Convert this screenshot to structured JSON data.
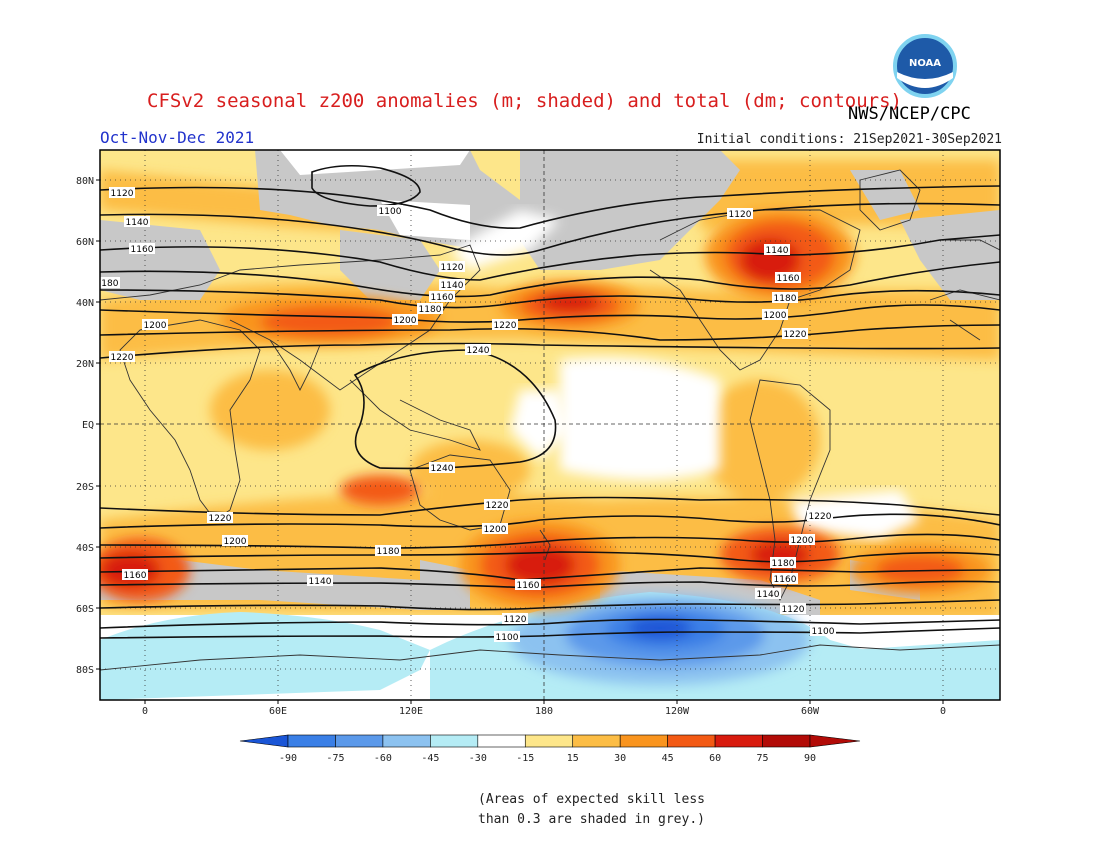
{
  "header": {
    "title": "CFSv2 seasonal z200 anomalies (m; shaded) and total (dm; contours)",
    "organization": "NWS/NCEP/CPC",
    "logo_text": "NOAA",
    "period": "Oct-Nov-Dec 2021",
    "initial_conditions": "Initial conditions: 21Sep2021-30Sep2021"
  },
  "map": {
    "lat_labels": [
      "80N",
      "60N",
      "40N",
      "20N",
      "EQ",
      "20S",
      "40S",
      "60S",
      "80S"
    ],
    "lon_labels": [
      "0",
      "60E",
      "120E",
      "180",
      "120W",
      "60W",
      "0"
    ],
    "contour_labels": [
      "1100",
      "1120",
      "1140",
      "1160",
      "1180",
      "1200",
      "1220",
      "1240"
    ]
  },
  "colorbar": {
    "labels": [
      "-90",
      "-75",
      "-60",
      "-45",
      "-30",
      "-15",
      "15",
      "30",
      "45",
      "60",
      "75",
      "90"
    ],
    "colors": [
      "#1a55d6",
      "#3a7fe6",
      "#5b99ea",
      "#8cc2f0",
      "#b5ecf5",
      "#ffffff",
      "#fde68a",
      "#fcbd45",
      "#f9941e",
      "#f35a14",
      "#d81b0e",
      "#b20b07"
    ],
    "skill_grey": "#c8c8c8"
  },
  "footnote": {
    "line1": "(Areas of expected skill less",
    "line2": "than 0.3 are shaded in grey.)"
  }
}
